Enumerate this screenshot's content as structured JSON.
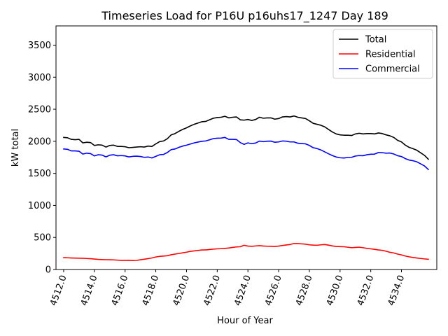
{
  "chart_data": {
    "type": "line",
    "title": "Timeseries Load for P16U p16uhs17_1247  Day 189",
    "xlabel": "Hour of Year",
    "ylabel": "kW total",
    "xlim": [
      4511.5,
      4536.3
    ],
    "ylim": [
      0,
      3800
    ],
    "x_ticks": [
      4512,
      4514,
      4516,
      4518,
      4520,
      4522,
      4524,
      4526,
      4528,
      4530,
      4532,
      4534
    ],
    "x_tick_labels": [
      "4512.0",
      "4514.0",
      "4516.0",
      "4518.0",
      "4520.0",
      "4522.0",
      "4524.0",
      "4526.0",
      "4528.0",
      "4530.0",
      "4532.0",
      "4534.0"
    ],
    "y_ticks": [
      0,
      500,
      1000,
      1500,
      2000,
      2500,
      3000,
      3500
    ],
    "y_tick_labels": [
      "0",
      "500",
      "1000",
      "1500",
      "2000",
      "2500",
      "3000",
      "3500"
    ],
    "legend_position": "top-right",
    "x": [
      4512.0,
      4512.25,
      4512.5,
      4512.75,
      4513.0,
      4513.25,
      4513.5,
      4513.75,
      4514.0,
      4514.25,
      4514.5,
      4514.75,
      4515.0,
      4515.25,
      4515.5,
      4515.75,
      4516.0,
      4516.25,
      4516.5,
      4516.75,
      4517.0,
      4517.25,
      4517.5,
      4517.75,
      4518.0,
      4518.25,
      4518.5,
      4518.75,
      4519.0,
      4519.25,
      4519.5,
      4519.75,
      4520.0,
      4520.25,
      4520.5,
      4520.75,
      4521.0,
      4521.25,
      4521.5,
      4521.75,
      4522.0,
      4522.25,
      4522.5,
      4522.75,
      4523.0,
      4523.25,
      4523.5,
      4523.75,
      4524.0,
      4524.25,
      4524.5,
      4524.75,
      4525.0,
      4525.25,
      4525.5,
      4525.75,
      4526.0,
      4526.25,
      4526.5,
      4526.75,
      4527.0,
      4527.25,
      4527.5,
      4527.75,
      4528.0,
      4528.25,
      4528.5,
      4528.75,
      4529.0,
      4529.25,
      4529.5,
      4529.75,
      4530.0,
      4530.25,
      4530.5,
      4530.75,
      4531.0,
      4531.25,
      4531.5,
      4531.75,
      4532.0,
      4532.25,
      4532.5,
      4532.75,
      4533.0,
      4533.25,
      4533.5,
      4533.75,
      4534.0,
      4534.25,
      4534.5,
      4534.75,
      4535.0,
      4535.25,
      4535.5,
      4535.75
    ],
    "series": [
      {
        "name": "Total",
        "color": "#000000",
        "values": [
          2060,
          2055,
          2030,
          2025,
          2030,
          1975,
          1985,
          1980,
          1935,
          1945,
          1940,
          1910,
          1935,
          1940,
          1920,
          1920,
          1915,
          1900,
          1905,
          1910,
          1915,
          1910,
          1925,
          1920,
          1960,
          1995,
          2005,
          2040,
          2100,
          2120,
          2155,
          2185,
          2210,
          2240,
          2265,
          2285,
          2305,
          2310,
          2335,
          2360,
          2370,
          2375,
          2390,
          2365,
          2375,
          2380,
          2335,
          2330,
          2340,
          2325,
          2340,
          2375,
          2360,
          2365,
          2365,
          2345,
          2355,
          2380,
          2385,
          2380,
          2395,
          2375,
          2365,
          2355,
          2320,
          2280,
          2265,
          2250,
          2225,
          2185,
          2145,
          2115,
          2100,
          2095,
          2095,
          2090,
          2115,
          2125,
          2115,
          2120,
          2120,
          2115,
          2130,
          2120,
          2100,
          2085,
          2060,
          2015,
          1990,
          1940,
          1905,
          1885,
          1860,
          1820,
          1780,
          1720
        ]
      },
      {
        "name": "Residential",
        "color": "#ff0000",
        "values": [
          185,
          183,
          180,
          178,
          177,
          175,
          172,
          168,
          163,
          158,
          155,
          153,
          152,
          150,
          146,
          143,
          143,
          144,
          140,
          142,
          152,
          160,
          170,
          180,
          195,
          205,
          210,
          215,
          230,
          240,
          250,
          260,
          270,
          283,
          290,
          297,
          305,
          305,
          312,
          318,
          322,
          325,
          330,
          335,
          345,
          352,
          355,
          378,
          365,
          362,
          367,
          372,
          366,
          363,
          362,
          360,
          365,
          375,
          383,
          390,
          405,
          405,
          400,
          395,
          385,
          380,
          378,
          385,
          390,
          380,
          368,
          360,
          357,
          355,
          348,
          340,
          345,
          348,
          340,
          330,
          322,
          315,
          305,
          298,
          285,
          268,
          258,
          240,
          228,
          210,
          198,
          188,
          180,
          172,
          165,
          160
        ]
      },
      {
        "name": "Commercial",
        "color": "#0000ff",
        "values": [
          1880,
          1875,
          1850,
          1850,
          1845,
          1800,
          1815,
          1808,
          1772,
          1790,
          1785,
          1757,
          1783,
          1790,
          1774,
          1777,
          1772,
          1756,
          1765,
          1768,
          1763,
          1750,
          1755,
          1740,
          1765,
          1790,
          1795,
          1825,
          1870,
          1880,
          1905,
          1925,
          1940,
          1957,
          1975,
          1988,
          2000,
          2005,
          2023,
          2042,
          2048,
          2050,
          2060,
          2030,
          2030,
          2028,
          1980,
          1952,
          1975,
          1963,
          1973,
          2003,
          1994,
          2002,
          2003,
          1985,
          1990,
          2005,
          2002,
          1990,
          1990,
          1970,
          1965,
          1960,
          1935,
          1900,
          1887,
          1865,
          1835,
          1805,
          1777,
          1755,
          1743,
          1740,
          1747,
          1750,
          1770,
          1777,
          1775,
          1790,
          1798,
          1800,
          1825,
          1822,
          1815,
          1817,
          1802,
          1775,
          1762,
          1730,
          1707,
          1697,
          1680,
          1648,
          1615,
          1560
        ]
      }
    ]
  }
}
